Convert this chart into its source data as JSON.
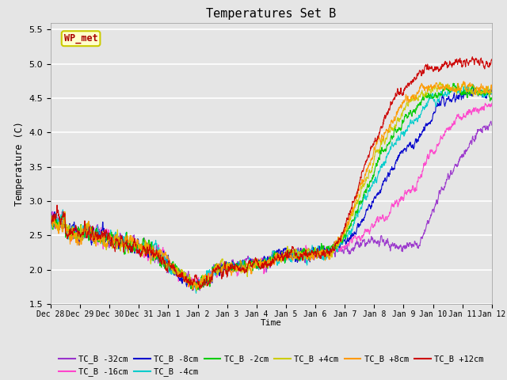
{
  "title": "Temperatures Set B",
  "xlabel": "Time",
  "ylabel": "Temperature (C)",
  "ylim": [
    1.5,
    5.6
  ],
  "annotation_text": "WP_met",
  "annotation_bg": "#ffffcc",
  "annotation_border": "#cccc00",
  "annotation_text_color": "#aa0000",
  "bg_color": "#e5e5e5",
  "plot_bg": "#e5e5e5",
  "series_colors": [
    "#9933cc",
    "#ff44cc",
    "#0000cc",
    "#00cccc",
    "#00cc00",
    "#cccc00",
    "#ff9900",
    "#cc0000"
  ],
  "series_labels": [
    "TC_B -32cm",
    "TC_B -16cm",
    "TC_B -8cm",
    "TC_B -4cm",
    "TC_B -2cm",
    "TC_B +4cm",
    "TC_B +8cm",
    "TC_B +12cm"
  ],
  "xtick_labels": [
    "Dec 28",
    "Dec 29",
    "Dec 30",
    "Dec 31",
    "Jan 1",
    "Jan 2",
    "Jan 3",
    "Jan 4",
    "Jan 5",
    "Jan 6",
    "Jan 7",
    "Jan 8",
    "Jan 9",
    "Jan 10",
    "Jan 11",
    "Jan 12"
  ],
  "num_points": 2000,
  "seed": 42
}
